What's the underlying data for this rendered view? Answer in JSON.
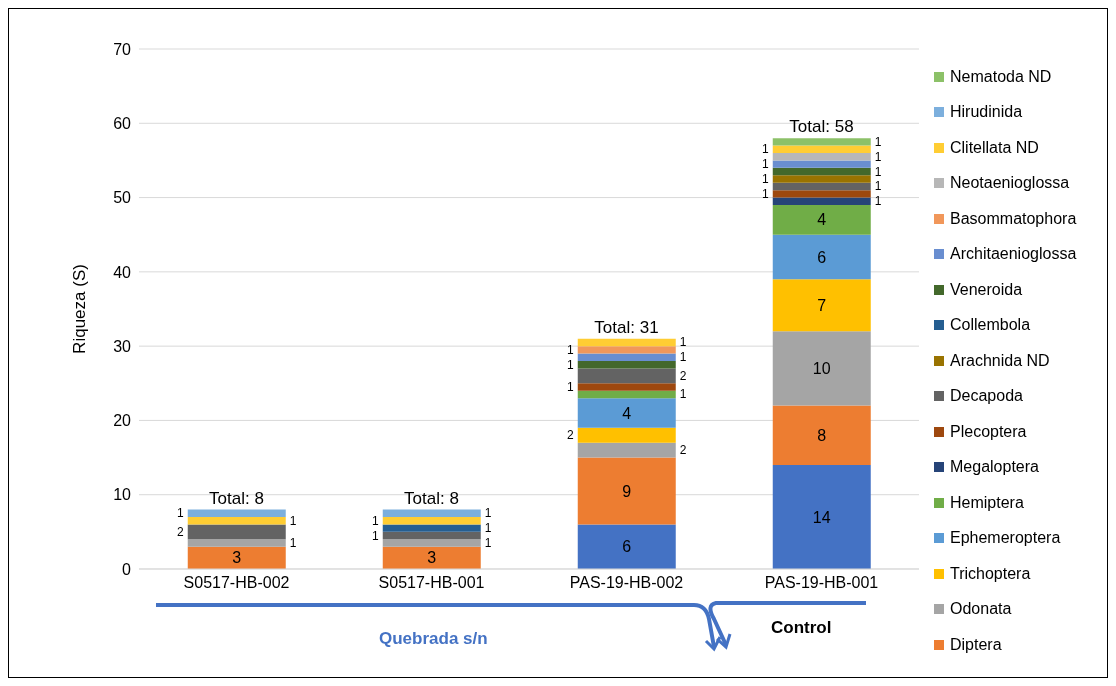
{
  "chart_data": {
    "type": "bar",
    "stacked": true,
    "ylabel": "Riqueza (S)",
    "categories": [
      "S0517-HB-002",
      "S0517-HB-001",
      "PAS-19-HB-002",
      "PAS-19-HB-001"
    ],
    "series": [
      {
        "color": "#4472c4",
        "values": [
          null,
          null,
          6,
          14
        ]
      },
      {
        "name": "Diptera",
        "color": "#ed7d31",
        "values": [
          3,
          3,
          9,
          8
        ]
      },
      {
        "name": "Odonata",
        "color": "#a5a5a5",
        "values": [
          1,
          1,
          2,
          10
        ]
      },
      {
        "name": "Trichoptera",
        "color": "#ffc000",
        "values": [
          null,
          null,
          2,
          7
        ]
      },
      {
        "name": "Ephemeroptera",
        "color": "#5b9bd5",
        "values": [
          null,
          null,
          4,
          6
        ]
      },
      {
        "name": "Hemiptera",
        "color": "#70ad47",
        "values": [
          null,
          null,
          1,
          4
        ]
      },
      {
        "name": "Megaloptera",
        "color": "#264478",
        "values": [
          null,
          null,
          null,
          1
        ]
      },
      {
        "name": "Plecoptera",
        "color": "#9e480e",
        "values": [
          null,
          null,
          1,
          1
        ]
      },
      {
        "name": "Decapoda",
        "color": "#636363",
        "values": [
          2,
          1,
          2,
          1
        ]
      },
      {
        "name": "Arachnida ND",
        "color": "#997300",
        "values": [
          null,
          null,
          null,
          1
        ]
      },
      {
        "name": "Collembola",
        "color": "#255e91",
        "values": [
          null,
          1,
          null,
          null
        ]
      },
      {
        "name": "Veneroida",
        "color": "#43682b",
        "values": [
          null,
          null,
          1,
          1
        ]
      },
      {
        "name": "Architaenioglossa",
        "color": "#698ed0",
        "values": [
          null,
          null,
          1,
          1
        ]
      },
      {
        "name": "Basommatophora",
        "color": "#f1975a",
        "values": [
          null,
          null,
          1,
          null
        ]
      },
      {
        "name": "Neotaenioglossa",
        "color": "#b7b7b7",
        "values": [
          null,
          null,
          null,
          1
        ]
      },
      {
        "name": "Clitellata ND",
        "color": "#ffcd33",
        "values": [
          1,
          1,
          1,
          1
        ]
      },
      {
        "name": "Hirudinida",
        "color": "#7cafdd",
        "values": [
          1,
          1,
          null,
          null
        ]
      },
      {
        "name": "Nematoda ND",
        "color": "#8cc168",
        "values": [
          null,
          null,
          null,
          1
        ]
      }
    ],
    "ylim": [
      0,
      70
    ],
    "yticks": [
      0,
      10,
      20,
      30,
      40,
      50,
      60,
      70
    ],
    "grid": "y",
    "legend": "right",
    "data_labels": true,
    "totals": [
      "Total: 8",
      "Total: 8",
      "Total: 31",
      "Total: 58"
    ],
    "annotations": [
      "Quebrada s/n",
      "Control"
    ]
  }
}
